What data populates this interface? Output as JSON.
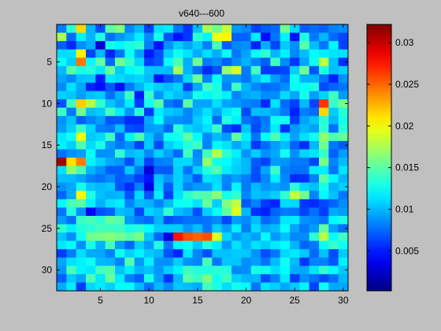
{
  "chart_data": {
    "type": "heatmap",
    "title": "v640---600",
    "xlabel": "",
    "ylabel": "",
    "xlim": [
      0.5,
      30.5
    ],
    "ylim": [
      0.5,
      32.5
    ],
    "x_ticks": [
      5,
      10,
      15,
      20,
      25,
      30
    ],
    "y_ticks": [
      5,
      10,
      15,
      20,
      25,
      30
    ],
    "colormap": "jet",
    "colorbar": {
      "range": [
        0.0002,
        0.0322
      ],
      "ticks": [
        0.005,
        0.01,
        0.015,
        0.02,
        0.025,
        0.03
      ],
      "tick_labels": [
        "0.005",
        "0.01",
        "0.015",
        "0.02",
        "0.025",
        "0.03"
      ]
    },
    "rows": 32,
    "cols": 30,
    "values": [
      [
        0.0081,
        0.0136,
        0.0215,
        0.0098,
        0.0067,
        0.015,
        0.0164,
        0.0084,
        0.01,
        0.0062,
        0.0112,
        0.0116,
        0.0079,
        0.0058,
        0.0102,
        0.0175,
        0.0157,
        0.0184,
        0.009,
        0.0085,
        0.0062,
        0.0071,
        0.0076,
        0.0157,
        0.0111,
        0.0071,
        0.0076,
        0.0072,
        0.0083,
        0.0086
      ],
      [
        0.0175,
        0.0075,
        0.0119,
        0.0099,
        0.0131,
        0.0077,
        0.0089,
        0.0098,
        0.0117,
        0.0086,
        0.0129,
        0.0068,
        0.0048,
        0.006,
        0.0136,
        0.0119,
        0.0197,
        0.0204,
        0.0072,
        0.0073,
        0.0116,
        0.0046,
        0.0078,
        0.0119,
        0.0047,
        0.0131,
        0.008,
        0.0099,
        0.0075,
        0.0064
      ],
      [
        0.0072,
        0.0055,
        0.0087,
        0.0097,
        0.0029,
        0.0129,
        0.012,
        0.013,
        0.0136,
        0.0082,
        0.0047,
        0.0088,
        0.0106,
        0.0094,
        0.0107,
        0.0082,
        0.0146,
        0.0071,
        0.0085,
        0.0087,
        0.0053,
        0.0097,
        0.0064,
        0.0106,
        0.0087,
        0.0149,
        0.0102,
        0.0079,
        0.012,
        0.0062
      ],
      [
        0.0111,
        0.0113,
        0.0206,
        0.0064,
        0.01,
        0.0053,
        0.0078,
        0.0125,
        0.0093,
        0.0049,
        0.0068,
        0.0106,
        0.0127,
        0.0114,
        0.0096,
        0.0112,
        0.0097,
        0.0125,
        0.008,
        0.0093,
        0.0125,
        0.0136,
        0.0099,
        0.0118,
        0.0085,
        0.0102,
        0.0123,
        0.0117,
        0.0114,
        0.0113
      ],
      [
        0.0124,
        0.0107,
        0.0245,
        0.0121,
        0.0153,
        0.0075,
        0.0156,
        0.0139,
        0.011,
        0.0061,
        0.0069,
        0.0123,
        0.0146,
        0.0097,
        0.0157,
        0.0081,
        0.0087,
        0.0071,
        0.0086,
        0.0098,
        0.0083,
        0.0072,
        0.0141,
        0.0086,
        0.0059,
        0.0094,
        0.0126,
        0.0181,
        0.0103,
        0.0057
      ],
      [
        0.01,
        0.015,
        0.0128,
        0.0134,
        0.0115,
        0.0154,
        0.0106,
        0.0121,
        0.0129,
        0.0104,
        0.0102,
        0.0101,
        0.0172,
        0.0098,
        0.0077,
        0.0055,
        0.0068,
        0.0168,
        0.019,
        0.0081,
        0.0142,
        0.006,
        0.006,
        0.0065,
        0.0107,
        0.0156,
        0.0068,
        0.0132,
        0.0102,
        0.0107
      ],
      [
        0.0094,
        0.0086,
        0.0103,
        0.0104,
        0.0051,
        0.0115,
        0.0111,
        0.0105,
        0.011,
        0.0101,
        0.0047,
        0.0066,
        0.008,
        0.011,
        0.0156,
        0.0083,
        0.0124,
        0.0088,
        0.0089,
        0.0079,
        0.0102,
        0.0116,
        0.0091,
        0.0076,
        0.0127,
        0.0098,
        0.0098,
        0.0077,
        0.0051,
        0.0088
      ],
      [
        0.0086,
        0.0113,
        0.0094,
        0.0053,
        0.0046,
        0.007,
        0.0046,
        0.008,
        0.0098,
        0.0115,
        0.0107,
        0.0101,
        0.0107,
        0.0062,
        0.0096,
        0.0142,
        0.013,
        0.0083,
        0.0141,
        0.0099,
        0.0085,
        0.0076,
        0.0078,
        0.0087,
        0.0124,
        0.0123,
        0.0131,
        0.0065,
        0.0074,
        0.0079
      ],
      [
        0.0108,
        0.0104,
        0.0092,
        0.0103,
        0.0106,
        0.0077,
        0.0097,
        0.0141,
        0.0051,
        0.0139,
        0.0089,
        0.0111,
        0.0102,
        0.0095,
        0.0129,
        0.012,
        0.0131,
        0.0118,
        0.0084,
        0.0095,
        0.0098,
        0.0086,
        0.0087,
        0.0111,
        0.0094,
        0.0129,
        0.0092,
        0.0108,
        0.0141,
        0.0091
      ],
      [
        0.0067,
        0.0142,
        0.0218,
        0.0178,
        0.0138,
        0.0104,
        0.0092,
        0.0117,
        0.0061,
        0.0128,
        0.015,
        0.008,
        0.0072,
        0.015,
        0.0094,
        0.0093,
        0.0112,
        0.0094,
        0.009,
        0.0083,
        0.0081,
        0.0055,
        0.0114,
        0.0076,
        0.0062,
        0.0101,
        0.0063,
        0.0265,
        0.0139,
        0.0158
      ],
      [
        0.014,
        0.008,
        0.0157,
        0.0102,
        0.0106,
        0.0144,
        0.0117,
        0.0089,
        0.0134,
        0.006,
        0.0116,
        0.0105,
        0.0101,
        0.0084,
        0.0099,
        0.0113,
        0.0095,
        0.0115,
        0.0126,
        0.0065,
        0.0102,
        0.0101,
        0.0093,
        0.008,
        0.0052,
        0.0082,
        0.0076,
        0.0215,
        0.0106,
        0.0134
      ],
      [
        0.0088,
        0.0103,
        0.0072,
        0.0083,
        0.0092,
        0.0069,
        0.007,
        0.0055,
        0.0055,
        0.0095,
        0.0122,
        0.0089,
        0.0087,
        0.0084,
        0.0106,
        0.0119,
        0.0075,
        0.0133,
        0.0118,
        0.0077,
        0.0069,
        0.008,
        0.0126,
        0.0127,
        0.0061,
        0.0093,
        0.0104,
        0.0133,
        0.01,
        0.0128
      ],
      [
        0.0092,
        0.0108,
        0.014,
        0.0109,
        0.0082,
        0.0079,
        0.0102,
        0.0066,
        0.0063,
        0.0091,
        0.0093,
        0.0074,
        0.0135,
        0.011,
        0.0102,
        0.0112,
        0.014,
        0.0065,
        0.0055,
        0.0105,
        0.0065,
        0.0083,
        0.0116,
        0.0057,
        0.009,
        0.01,
        0.0093,
        0.0137,
        0.0077,
        0.0133
      ],
      [
        0.0115,
        0.0125,
        0.0197,
        0.0106,
        0.011,
        0.0141,
        0.0074,
        0.0119,
        0.0145,
        0.0104,
        0.0084,
        0.0126,
        0.0127,
        0.0152,
        0.0122,
        0.0085,
        0.0101,
        0.0092,
        0.0152,
        0.0117,
        0.0078,
        0.0123,
        0.0146,
        0.0117,
        0.0093,
        0.0112,
        0.0126,
        0.0166,
        0.0146,
        0.0153
      ],
      [
        0.0118,
        0.0108,
        0.0147,
        0.011,
        0.013,
        0.0091,
        0.0079,
        0.0088,
        0.0063,
        0.0106,
        0.0065,
        0.0107,
        0.0116,
        0.0132,
        0.0142,
        0.0083,
        0.012,
        0.0114,
        0.0095,
        0.0107,
        0.006,
        0.0076,
        0.0092,
        0.0102,
        0.0072,
        0.0056,
        0.0099,
        0.0157,
        0.008,
        0.0071
      ],
      [
        0.0077,
        0.0087,
        0.0092,
        0.0124,
        0.0087,
        0.0088,
        0.0138,
        0.0101,
        0.0105,
        0.0085,
        0.0108,
        0.0093,
        0.0075,
        0.0142,
        0.0085,
        0.0142,
        0.0178,
        0.0137,
        0.0118,
        0.0089,
        0.0106,
        0.0087,
        0.0095,
        0.0127,
        0.0087,
        0.0109,
        0.0114,
        0.0139,
        0.0072,
        0.0091
      ],
      [
        0.0312,
        0.0211,
        0.0243,
        0.0119,
        0.0108,
        0.0095,
        0.0089,
        0.0066,
        0.01,
        0.0063,
        0.0082,
        0.0084,
        0.011,
        0.0111,
        0.0088,
        0.0168,
        0.0128,
        0.0123,
        0.011,
        0.01,
        0.0071,
        0.0063,
        0.0091,
        0.0089,
        0.0081,
        0.008,
        0.0063,
        0.016,
        0.0084,
        0.0101
      ],
      [
        0.0112,
        0.0166,
        0.0144,
        0.0099,
        0.0088,
        0.0071,
        0.0071,
        0.0105,
        0.0078,
        0.003,
        0.0071,
        0.007,
        0.0108,
        0.0078,
        0.0108,
        0.0133,
        0.0147,
        0.0116,
        0.0107,
        0.01,
        0.0067,
        0.0094,
        0.014,
        0.0082,
        0.0077,
        0.0077,
        0.0116,
        0.0117,
        0.0078,
        0.0114
      ],
      [
        0.0102,
        0.0101,
        0.0094,
        0.0082,
        0.0077,
        0.0086,
        0.0071,
        0.0076,
        0.0062,
        0.0048,
        0.0103,
        0.0089,
        0.0108,
        0.0093,
        0.007,
        0.0114,
        0.011,
        0.0084,
        0.0092,
        0.0081,
        0.0066,
        0.0084,
        0.0118,
        0.0085,
        0.0055,
        0.0057,
        0.0082,
        0.0151,
        0.012,
        0.0099
      ],
      [
        0.0088,
        0.0095,
        0.0127,
        0.0105,
        0.01,
        0.0104,
        0.0069,
        0.0056,
        0.0082,
        0.0035,
        0.0107,
        0.0071,
        0.0109,
        0.0083,
        0.0091,
        0.0092,
        0.0113,
        0.0082,
        0.0119,
        0.008,
        0.01,
        0.0089,
        0.0093,
        0.0088,
        0.0136,
        0.0109,
        0.0102,
        0.0129,
        0.0098,
        0.0108
      ],
      [
        0.0074,
        0.0096,
        0.0204,
        0.0131,
        0.0103,
        0.0097,
        0.01,
        0.0068,
        0.0111,
        0.0068,
        0.0117,
        0.0062,
        0.0113,
        0.0136,
        0.0147,
        0.0148,
        0.0166,
        0.0129,
        0.0137,
        0.0084,
        0.0103,
        0.01,
        0.0107,
        0.0136,
        0.0185,
        0.0158,
        0.0084,
        0.0121,
        0.0103,
        0.0079
      ],
      [
        0.0121,
        0.0145,
        0.0151,
        0.0119,
        0.0097,
        0.0113,
        0.0117,
        0.0083,
        0.0101,
        0.0098,
        0.0083,
        0.0101,
        0.0125,
        0.0127,
        0.0114,
        0.0154,
        0.0107,
        0.0162,
        0.0182,
        0.007,
        0.0083,
        0.006,
        0.0053,
        0.0111,
        0.011,
        0.0059,
        0.0055,
        0.0065,
        0.0073,
        0.0086
      ],
      [
        0.0078,
        0.0133,
        0.0088,
        0.0042,
        0.0067,
        0.0072,
        0.0102,
        0.0098,
        0.0064,
        0.0109,
        0.0103,
        0.0137,
        0.0103,
        0.0095,
        0.0067,
        0.0108,
        0.0124,
        0.0152,
        0.0193,
        0.01,
        0.0057,
        0.0052,
        0.0073,
        0.0081,
        0.0079,
        0.0063,
        0.0077,
        0.0061,
        0.0095,
        0.0091
      ],
      [
        0.009,
        0.0077,
        0.014,
        0.0145,
        0.0136,
        0.0153,
        0.0148,
        0.009,
        0.008,
        0.0075,
        0.0099,
        0.0066,
        0.0072,
        0.0078,
        0.0077,
        0.0079,
        0.0085,
        0.0064,
        0.0091,
        0.0086,
        0.0102,
        0.0075,
        0.0082,
        0.0115,
        0.0116,
        0.0088,
        0.0085,
        0.0078,
        0.0121,
        0.0129
      ],
      [
        0.0137,
        0.0118,
        0.0133,
        0.0136,
        0.0143,
        0.0141,
        0.014,
        0.013,
        0.0134,
        0.0123,
        0.0106,
        0.0106,
        0.0106,
        0.009,
        0.0102,
        0.008,
        0.0107,
        0.0092,
        0.0118,
        0.0081,
        0.0111,
        0.0095,
        0.0101,
        0.0124,
        0.0093,
        0.008,
        0.0091,
        0.0152,
        0.0093,
        0.0077
      ],
      [
        0.0104,
        0.0087,
        0.0126,
        0.0157,
        0.0159,
        0.0164,
        0.0158,
        0.0149,
        0.016,
        0.0105,
        0.0074,
        0.0033,
        0.0276,
        0.0257,
        0.0251,
        0.0257,
        0.019,
        0.0109,
        0.0091,
        0.01,
        0.0092,
        0.0121,
        0.009,
        0.0102,
        0.0085,
        0.0086,
        0.0135,
        0.018,
        0.0122,
        0.0142
      ],
      [
        0.0115,
        0.0123,
        0.0087,
        0.013,
        0.0098,
        0.0143,
        0.0091,
        0.0074,
        0.0107,
        0.0091,
        0.0131,
        0.0079,
        0.012,
        0.0125,
        0.0105,
        0.0135,
        0.0117,
        0.009,
        0.0113,
        0.0098,
        0.0113,
        0.0106,
        0.0116,
        0.0122,
        0.0098,
        0.0073,
        0.008,
        0.0123,
        0.014,
        0.0126
      ],
      [
        0.006,
        0.0081,
        0.0112,
        0.0096,
        0.0095,
        0.0082,
        0.0125,
        0.0107,
        0.0119,
        0.0105,
        0.01,
        0.0068,
        0.0054,
        0.0115,
        0.0084,
        0.0067,
        0.0104,
        0.0103,
        0.0106,
        0.0105,
        0.0088,
        0.0066,
        0.0079,
        0.011,
        0.0115,
        0.0105,
        0.0075,
        0.0103,
        0.0066,
        0.0106
      ],
      [
        0.0094,
        0.0113,
        0.0118,
        0.0126,
        0.01,
        0.0098,
        0.0083,
        0.0148,
        0.009,
        0.0118,
        0.0088,
        0.0087,
        0.0107,
        0.0088,
        0.0084,
        0.0144,
        0.008,
        0.0105,
        0.0104,
        0.0087,
        0.0092,
        0.0078,
        0.0101,
        0.0127,
        0.0101,
        0.0059,
        0.0083,
        0.0082,
        0.0069,
        0.0118
      ],
      [
        0.0089,
        0.0144,
        0.0119,
        0.0115,
        0.0143,
        0.0148,
        0.0103,
        0.0117,
        0.0098,
        0.0103,
        0.009,
        0.0107,
        0.0119,
        0.0141,
        0.0134,
        0.0131,
        0.0136,
        0.0133,
        0.0085,
        0.0087,
        0.0129,
        0.0126,
        0.0112,
        0.0122,
        0.0096,
        0.0094,
        0.0114,
        0.0138,
        0.0123,
        0.0104
      ],
      [
        0.0072,
        0.0105,
        0.0093,
        0.0146,
        0.0115,
        0.0154,
        0.0116,
        0.0082,
        0.0072,
        0.0129,
        0.0092,
        0.0058,
        0.01,
        0.0149,
        0.014,
        0.0161,
        0.0127,
        0.0141,
        0.0108,
        0.0099,
        0.0099,
        0.0066,
        0.0083,
        0.0115,
        0.0061,
        0.0087,
        0.0077,
        0.0066,
        0.0077,
        0.01
      ],
      [
        0.0096,
        0.0116,
        0.0061,
        0.011,
        0.0117,
        0.0108,
        0.0123,
        0.0124,
        0.0101,
        0.0078,
        0.01,
        0.0086,
        0.0105,
        0.0102,
        0.0097,
        0.0143,
        0.0131,
        0.0112,
        0.0128,
        0.0121,
        0.0079,
        0.0114,
        0.0107,
        0.0095,
        0.0106,
        0.0119,
        0.0062,
        0.0126,
        0.0095,
        0.0094
      ]
    ]
  }
}
